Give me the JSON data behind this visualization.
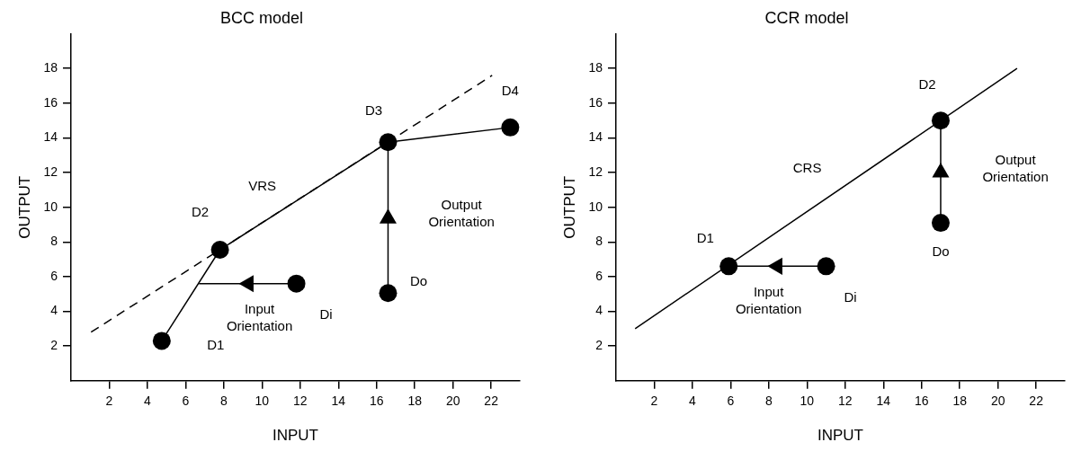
{
  "chart_data": [
    {
      "type": "scatter",
      "title": "BCC model",
      "xlabel": "INPUT",
      "ylabel": "OUTPUT",
      "xlim": [
        0,
        23.5
      ],
      "ylim": [
        0,
        20
      ],
      "xticks": [
        2,
        4,
        6,
        8,
        10,
        12,
        14,
        16,
        18,
        20,
        22
      ],
      "yticks": [
        2,
        4,
        6,
        8,
        10,
        12,
        14,
        16,
        18
      ],
      "series": [
        {
          "type": "line",
          "color": "#000000",
          "line_style": "dashed",
          "x": [
            1.05,
            22.05
          ],
          "values": [
            2.8,
            17.6
          ]
        },
        {
          "type": "line",
          "color": "#000000",
          "line_style": "solid",
          "x": [
            4.75,
            7.8,
            16.6,
            23.0
          ],
          "values": [
            2.3,
            7.55,
            13.75,
            14.6
          ]
        },
        {
          "type": "line",
          "color": "#000000",
          "line_style": "solid",
          "x": [
            11.8,
            6.7
          ],
          "values": [
            5.6,
            5.6
          ]
        },
        {
          "type": "line",
          "color": "#000000",
          "line_style": "solid",
          "x": [
            16.6,
            16.6
          ],
          "values": [
            5.05,
            13.75
          ]
        },
        {
          "type": "scatter",
          "color": "#000000",
          "marker": "triangle",
          "x": [
            9.3,
            16.6
          ],
          "values": [
            5.6,
            9.35
          ]
        },
        {
          "type": "scatter",
          "name": "D1",
          "color": "#000000",
          "marker": "circle",
          "x": [
            4.75
          ],
          "values": [
            2.3
          ]
        },
        {
          "type": "scatter",
          "name": "D2",
          "color": "#000000",
          "marker": "circle",
          "x": [
            7.8
          ],
          "values": [
            7.55
          ]
        },
        {
          "type": "scatter",
          "name": "D3",
          "color": "#000000",
          "marker": "circle",
          "x": [
            16.6
          ],
          "values": [
            13.75
          ]
        },
        {
          "type": "scatter",
          "name": "D4",
          "color": "#000000",
          "marker": "circle",
          "x": [
            23.0
          ],
          "values": [
            14.6
          ]
        },
        {
          "type": "scatter",
          "name": "Di",
          "color": "#000000",
          "marker": "circle",
          "x": [
            11.8
          ],
          "values": [
            5.6
          ]
        },
        {
          "type": "scatter",
          "name": "Do",
          "color": "#000000",
          "marker": "circle",
          "x": [
            16.6
          ],
          "values": [
            5.05
          ]
        }
      ],
      "annotations": [
        "VRS",
        "Output Orientation",
        "Input Orientation"
      ]
    },
    {
      "type": "scatter",
      "title": "CCR model",
      "xlabel": "INPUT",
      "ylabel": "OUTPUT",
      "xlim": [
        0,
        23.5
      ],
      "ylim": [
        0,
        20
      ],
      "xticks": [
        2,
        4,
        6,
        8,
        10,
        12,
        14,
        16,
        18,
        20,
        22
      ],
      "yticks": [
        2,
        4,
        6,
        8,
        10,
        12,
        14,
        16,
        18
      ],
      "series": [
        {
          "type": "line",
          "color": "#000000",
          "line_style": "solid",
          "x": [
            1.0,
            21.0
          ],
          "values": [
            3.0,
            18.0
          ]
        },
        {
          "type": "line",
          "color": "#000000",
          "line_style": "solid",
          "x": [
            11.0,
            5.9
          ],
          "values": [
            6.6,
            6.6
          ]
        },
        {
          "type": "line",
          "color": "#000000",
          "line_style": "solid",
          "x": [
            17.0,
            17.0
          ],
          "values": [
            9.1,
            15.0
          ]
        },
        {
          "type": "scatter",
          "color": "#000000",
          "marker": "triangle",
          "x": [
            8.45,
            17.0
          ],
          "values": [
            6.6,
            12.0
          ]
        },
        {
          "type": "scatter",
          "name": "D1",
          "color": "#000000",
          "marker": "circle",
          "x": [
            5.9
          ],
          "values": [
            6.6
          ]
        },
        {
          "type": "scatter",
          "name": "D2",
          "color": "#000000",
          "marker": "circle",
          "x": [
            17.0
          ],
          "values": [
            15.0
          ]
        },
        {
          "type": "scatter",
          "name": "Di",
          "color": "#000000",
          "marker": "circle",
          "x": [
            11.0
          ],
          "values": [
            6.6
          ]
        },
        {
          "type": "scatter",
          "name": "Do",
          "color": "#000000",
          "marker": "circle",
          "x": [
            17.0
          ],
          "values": [
            9.1
          ]
        }
      ],
      "annotations": [
        "CRS",
        "Output Orientation",
        "Input Orientation"
      ]
    }
  ]
}
